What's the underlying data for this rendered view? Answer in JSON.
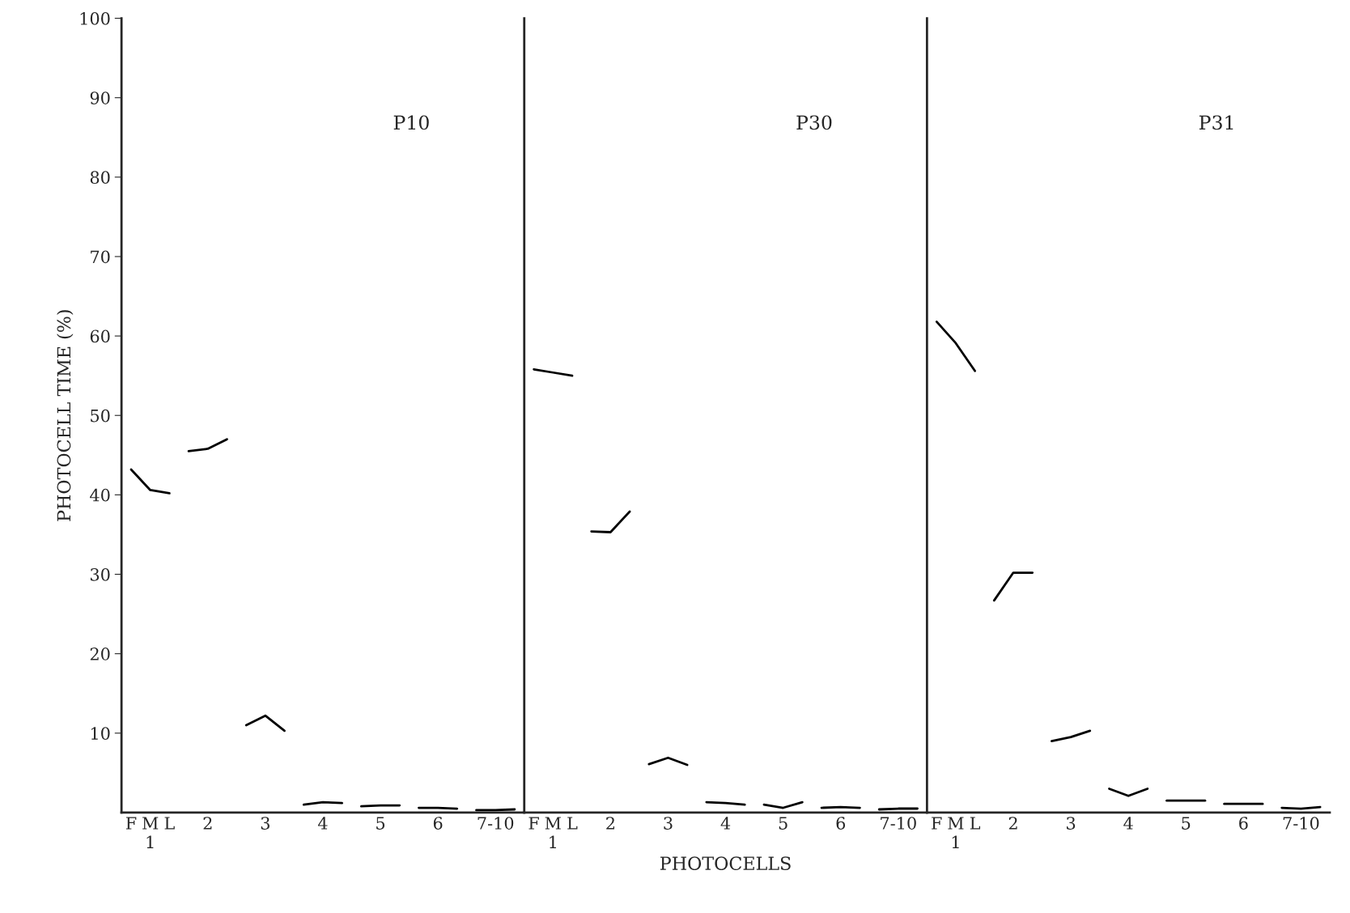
{
  "chart_data": [
    {
      "type": "line",
      "title": "P10",
      "ylabel": "PHOTOCELL TIME (%)",
      "categories": [
        "F",
        "M\n1",
        "L",
        null,
        "2",
        null,
        null,
        "3",
        null,
        null,
        "4",
        null,
        null,
        "5",
        null,
        null,
        "6",
        null,
        null,
        "7-10",
        null
      ],
      "ylim": [
        0,
        100
      ],
      "yticks": [
        10,
        20,
        30,
        40,
        50,
        60,
        70,
        80,
        90,
        100
      ],
      "color": "#000000",
      "marker": "none",
      "line_style": "solid",
      "grid": false,
      "legend": false,
      "series": [
        {
          "values": [
            43.2,
            40.6,
            40.2,
            null,
            null,
            null,
            null,
            null,
            null,
            null,
            null,
            null,
            null,
            null,
            null,
            null,
            null,
            null,
            null,
            null,
            null
          ]
        },
        {
          "values": [
            null,
            null,
            null,
            45.5,
            45.8,
            47.0,
            null,
            null,
            null,
            null,
            null,
            null,
            null,
            null,
            null,
            null,
            null,
            null,
            null,
            null,
            null
          ]
        },
        {
          "values": [
            null,
            null,
            null,
            null,
            null,
            null,
            11.0,
            12.2,
            10.3,
            null,
            null,
            null,
            null,
            null,
            null,
            null,
            null,
            null,
            null,
            null,
            null
          ]
        },
        {
          "values": [
            null,
            null,
            null,
            null,
            null,
            null,
            null,
            null,
            null,
            1.0,
            1.3,
            1.2,
            null,
            null,
            null,
            null,
            null,
            null,
            null,
            null,
            null
          ]
        },
        {
          "values": [
            null,
            null,
            null,
            null,
            null,
            null,
            null,
            null,
            null,
            null,
            null,
            null,
            0.8,
            0.9,
            0.9,
            null,
            null,
            null,
            null,
            null,
            null
          ]
        },
        {
          "values": [
            null,
            null,
            null,
            null,
            null,
            null,
            null,
            null,
            null,
            null,
            null,
            null,
            null,
            null,
            null,
            0.6,
            0.6,
            0.5,
            null,
            null,
            null
          ]
        },
        {
          "values": [
            null,
            null,
            null,
            null,
            null,
            null,
            null,
            null,
            null,
            null,
            null,
            null,
            null,
            null,
            null,
            null,
            null,
            null,
            0.3,
            0.3,
            0.4
          ]
        }
      ]
    },
    {
      "type": "line",
      "title": "P30",
      "xlabel": "PHOTOCELLS",
      "tick_labels": "x",
      "categories": [
        "F",
        "M\n1",
        "L",
        null,
        "2",
        null,
        null,
        "3",
        null,
        null,
        "4",
        null,
        null,
        "5",
        null,
        null,
        "6",
        null,
        null,
        "7-10",
        null
      ],
      "ylim": [
        0,
        100
      ],
      "yticks": [
        10,
        20,
        30,
        40,
        50,
        60,
        70,
        80,
        90,
        100
      ],
      "color": "#000000",
      "marker": "none",
      "line_style": "solid",
      "grid": false,
      "legend": false,
      "series": [
        {
          "values": [
            55.8,
            55.4,
            55.0,
            null,
            null,
            null,
            null,
            null,
            null,
            null,
            null,
            null,
            null,
            null,
            null,
            null,
            null,
            null,
            null,
            null,
            null
          ]
        },
        {
          "values": [
            null,
            null,
            null,
            35.4,
            35.3,
            37.9,
            null,
            null,
            null,
            null,
            null,
            null,
            null,
            null,
            null,
            null,
            null,
            null,
            null,
            null,
            null
          ]
        },
        {
          "values": [
            null,
            null,
            null,
            null,
            null,
            null,
            6.1,
            6.9,
            6.0,
            null,
            null,
            null,
            null,
            null,
            null,
            null,
            null,
            null,
            null,
            null,
            null
          ]
        },
        {
          "values": [
            null,
            null,
            null,
            null,
            null,
            null,
            null,
            null,
            null,
            1.3,
            1.2,
            1.0,
            null,
            null,
            null,
            null,
            null,
            null,
            null,
            null,
            null
          ]
        },
        {
          "values": [
            null,
            null,
            null,
            null,
            null,
            null,
            null,
            null,
            null,
            null,
            null,
            null,
            1.0,
            0.6,
            1.3,
            null,
            null,
            null,
            null,
            null,
            null
          ]
        },
        {
          "values": [
            null,
            null,
            null,
            null,
            null,
            null,
            null,
            null,
            null,
            null,
            null,
            null,
            null,
            null,
            null,
            0.6,
            0.7,
            0.6,
            null,
            null,
            null
          ]
        },
        {
          "values": [
            null,
            null,
            null,
            null,
            null,
            null,
            null,
            null,
            null,
            null,
            null,
            null,
            null,
            null,
            null,
            null,
            null,
            null,
            0.4,
            0.5,
            0.5
          ]
        }
      ]
    },
    {
      "type": "line",
      "title": "P31",
      "tick_labels": "x",
      "categories": [
        "F",
        "M\n1",
        "L",
        null,
        "2",
        null,
        null,
        "3",
        null,
        null,
        "4",
        null,
        null,
        "5",
        null,
        null,
        "6",
        null,
        null,
        "7-10",
        null
      ],
      "ylim": [
        0,
        100
      ],
      "yticks": [
        10,
        20,
        30,
        40,
        50,
        60,
        70,
        80,
        90,
        100
      ],
      "color": "#000000",
      "marker": "none",
      "line_style": "solid",
      "grid": false,
      "legend": false,
      "series": [
        {
          "values": [
            61.8,
            59.1,
            55.6,
            null,
            null,
            null,
            null,
            null,
            null,
            null,
            null,
            null,
            null,
            null,
            null,
            null,
            null,
            null,
            null,
            null,
            null
          ]
        },
        {
          "values": [
            null,
            null,
            null,
            26.7,
            30.2,
            30.2,
            null,
            null,
            null,
            null,
            null,
            null,
            null,
            null,
            null,
            null,
            null,
            null,
            null,
            null,
            null
          ]
        },
        {
          "values": [
            null,
            null,
            null,
            null,
            null,
            null,
            9.0,
            9.5,
            10.3,
            null,
            null,
            null,
            null,
            null,
            null,
            null,
            null,
            null,
            null,
            null,
            null
          ]
        },
        {
          "values": [
            null,
            null,
            null,
            null,
            null,
            null,
            null,
            null,
            null,
            3.0,
            2.1,
            3.0,
            null,
            null,
            null,
            null,
            null,
            null,
            null,
            null,
            null
          ]
        },
        {
          "values": [
            null,
            null,
            null,
            null,
            null,
            null,
            null,
            null,
            null,
            null,
            null,
            null,
            1.5,
            1.5,
            1.5,
            null,
            null,
            null,
            null,
            null,
            null
          ]
        },
        {
          "values": [
            null,
            null,
            null,
            null,
            null,
            null,
            null,
            null,
            null,
            null,
            null,
            null,
            null,
            null,
            null,
            1.1,
            1.1,
            1.1,
            null,
            null,
            null
          ]
        },
        {
          "values": [
            null,
            null,
            null,
            null,
            null,
            null,
            null,
            null,
            null,
            null,
            null,
            null,
            null,
            null,
            null,
            null,
            null,
            null,
            0.6,
            0.5,
            0.7
          ]
        }
      ]
    }
  ]
}
